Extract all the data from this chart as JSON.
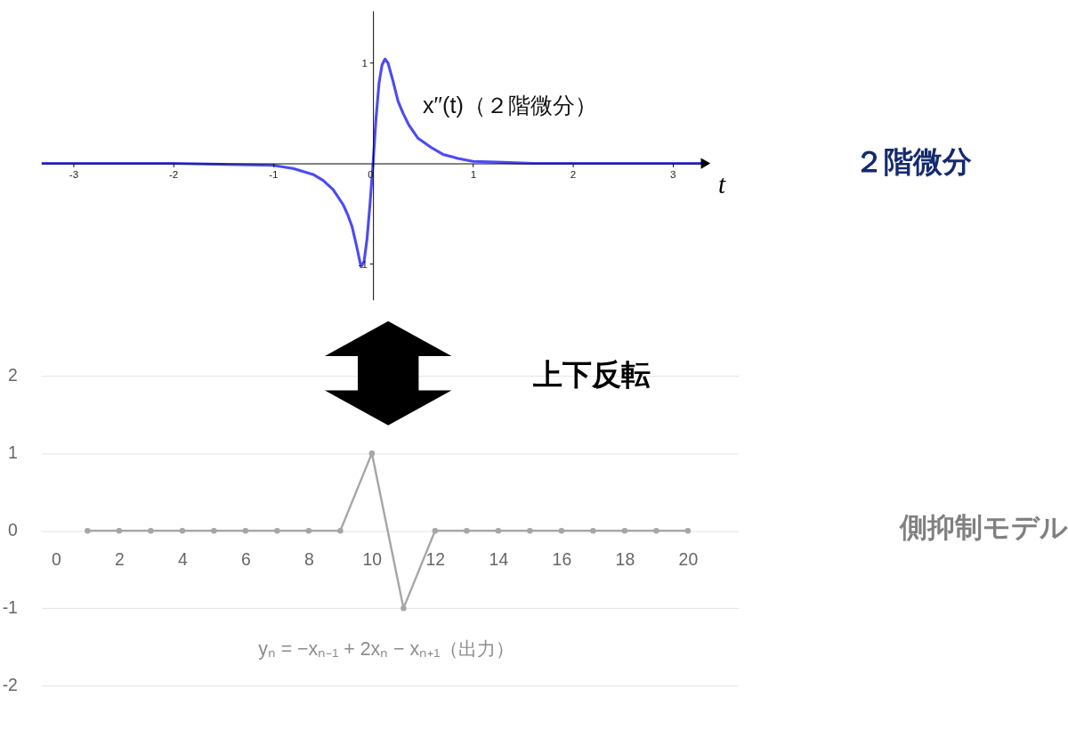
{
  "chart_data": [
    {
      "type": "line",
      "xlabel": "t",
      "xlim": [
        -3.32,
        3.33
      ],
      "ylim": [
        -1.36,
        1.52
      ],
      "xticks": [
        -3,
        -2,
        -1,
        0,
        1,
        2,
        3
      ],
      "yticks": [
        -1,
        1
      ],
      "grid": false,
      "marker": "none",
      "series": [
        {
          "color": "#4b4bf5",
          "x": [
            -3.32,
            -2,
            -1.5,
            -1,
            -0.8,
            -0.6,
            -0.5,
            -0.4,
            -0.3,
            -0.25,
            -0.21,
            -0.17,
            -0.14,
            -0.12,
            -0.09,
            -0.06,
            -0.03,
            0,
            0.03,
            0.06,
            0.09,
            0.12,
            0.15,
            0.2,
            0.25,
            0.3,
            0.36,
            0.45,
            0.58,
            0.7,
            0.85,
            1.0,
            1.3,
            1.6,
            2,
            3.33
          ],
          "values": [
            0,
            0,
            -0.01,
            -0.02,
            -0.05,
            -0.11,
            -0.17,
            -0.26,
            -0.41,
            -0.52,
            -0.63,
            -0.8,
            -0.94,
            -1.03,
            -0.98,
            -0.75,
            -0.4,
            0,
            0.45,
            0.8,
            0.98,
            1.04,
            1.0,
            0.82,
            0.62,
            0.5,
            0.38,
            0.25,
            0.16,
            0.09,
            0.05,
            0.02,
            0.01,
            0,
            0,
            0
          ]
        }
      ],
      "annotations": [
        "x′′(t)（２階微分）",
        "２階微分"
      ]
    },
    {
      "type": "line",
      "xlim": [
        -0.46,
        21.6
      ],
      "ylim": [
        -2,
        2
      ],
      "xticks": [
        0,
        2,
        4,
        6,
        8,
        10,
        12,
        14,
        16,
        18,
        20
      ],
      "yticks": [
        -2,
        -1,
        0,
        1,
        2
      ],
      "grid": "y",
      "marker": "circle",
      "series": [
        {
          "color": "#a6a6a6",
          "x": [
            1,
            2,
            3,
            4,
            5,
            6,
            7,
            8,
            9,
            10,
            11,
            12,
            13,
            14,
            15,
            16,
            17,
            18,
            19,
            20
          ],
          "values": [
            0,
            0,
            0,
            0,
            0,
            0,
            0,
            0,
            0,
            1,
            -1,
            0,
            0,
            0,
            0,
            0,
            0,
            0,
            0,
            0
          ]
        }
      ],
      "annotations": [
        "yₙ = −xₙ₋₁ + 2xₙ − xₙ₊₁（出力）",
        "上下反転",
        "側抑制モデル"
      ]
    }
  ]
}
